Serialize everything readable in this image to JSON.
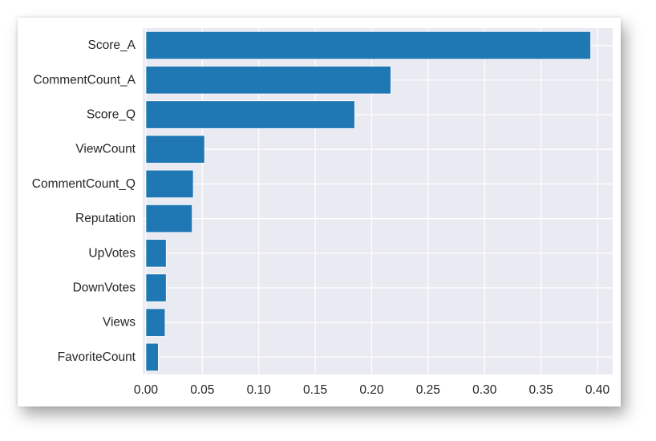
{
  "chart_data": {
    "type": "bar",
    "orientation": "horizontal",
    "title": "",
    "xlabel": "",
    "ylabel": "",
    "categories": [
      "Score_A",
      "CommentCount_A",
      "Score_Q",
      "ViewCount",
      "CommentCount_Q",
      "Reputation",
      "UpVotes",
      "DownVotes",
      "Views",
      "FavoriteCount"
    ],
    "values": [
      0.394,
      0.217,
      0.185,
      0.052,
      0.042,
      0.041,
      0.018,
      0.018,
      0.017,
      0.011
    ],
    "xlim": [
      -0.0028,
      0.4135
    ],
    "xticks": [
      "0.00",
      "0.05",
      "0.10",
      "0.15",
      "0.20",
      "0.25",
      "0.30",
      "0.35",
      "0.40"
    ],
    "grid": true,
    "legend": "none",
    "colors": {
      "bar": "#1f77b4",
      "plot_background": "#eaeaf2",
      "grid": "#ffffff",
      "text": "#262626"
    }
  }
}
